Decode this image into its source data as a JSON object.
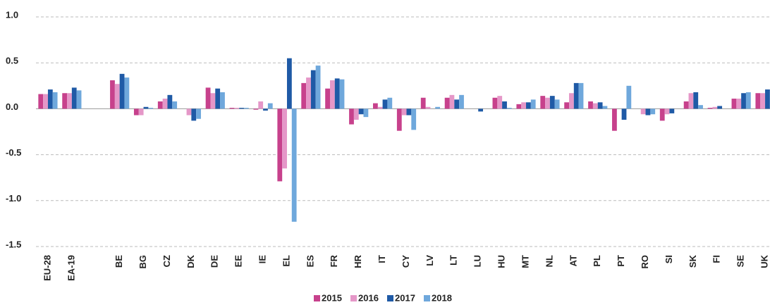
{
  "chart_data": {
    "type": "bar",
    "categories": [
      "EU-28",
      "EA-19",
      null,
      "BE",
      "BG",
      "CZ",
      "DK",
      "DE",
      "EE",
      "IE",
      "EL",
      "ES",
      "FR",
      "HR",
      "IT",
      "CY",
      "LV",
      "LT",
      "LU",
      "HU",
      "MT",
      "NL",
      "AT",
      "PL",
      "PT",
      "RO",
      "SI",
      "SK",
      "FI",
      "SE",
      "UK"
    ],
    "series": [
      {
        "name": "2015",
        "color": "#c7418c",
        "values": [
          0.16,
          0.17,
          null,
          0.31,
          -0.07,
          0.08,
          0.0,
          0.23,
          0.01,
          -0.01,
          -0.79,
          0.28,
          0.22,
          -0.17,
          0.06,
          -0.24,
          0.12,
          0.12,
          0.0,
          0.12,
          0.05,
          0.14,
          0.07,
          0.08,
          -0.24,
          0.0,
          -0.13,
          0.08,
          0.01,
          0.11,
          0.17
        ]
      },
      {
        "name": "2016",
        "color": "#e597c8",
        "values": [
          0.16,
          0.17,
          null,
          0.27,
          -0.07,
          0.11,
          -0.07,
          0.17,
          0.01,
          0.08,
          -0.65,
          0.34,
          0.31,
          -0.12,
          0.02,
          -0.07,
          0.02,
          0.15,
          0.0,
          0.14,
          0.07,
          0.12,
          0.17,
          0.06,
          0.0,
          -0.06,
          -0.06,
          0.17,
          0.02,
          0.11,
          0.17
        ]
      },
      {
        "name": "2017",
        "color": "#1f5aa6",
        "values": [
          0.21,
          0.23,
          null,
          0.38,
          0.02,
          0.15,
          -0.13,
          0.22,
          0.01,
          -0.02,
          0.55,
          0.42,
          0.33,
          -0.06,
          0.1,
          -0.07,
          0.0,
          0.1,
          -0.03,
          0.08,
          0.07,
          0.14,
          0.28,
          0.07,
          -0.12,
          -0.07,
          -0.05,
          0.18,
          0.03,
          0.17,
          0.21
        ]
      },
      {
        "name": "2018",
        "color": "#6fa8dc",
        "values": [
          0.18,
          0.2,
          null,
          0.34,
          0.01,
          0.08,
          -0.11,
          0.18,
          0.01,
          0.06,
          -1.23,
          0.47,
          0.32,
          -0.09,
          0.12,
          -0.23,
          0.02,
          0.15,
          0.0,
          0.01,
          0.1,
          0.1,
          0.28,
          0.03,
          0.25,
          -0.06,
          0.0,
          0.04,
          0.0,
          0.18,
          0.2
        ]
      }
    ],
    "ylim": [
      -1.5,
      1.0
    ],
    "yticks": [
      {
        "value": 1,
        "label": "1.0"
      },
      0.5,
      {
        "value": 0,
        "label": "0.0"
      },
      -0.5,
      {
        "value": -1,
        "label": "-1.0"
      },
      -1.5
    ],
    "grid": true,
    "legend": "bottom"
  }
}
